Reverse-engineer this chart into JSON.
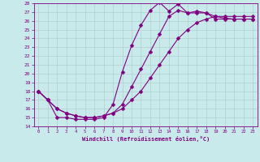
{
  "xlabel": "Windchill (Refroidissement éolien,°C)",
  "xlim": [
    -0.5,
    23.5
  ],
  "ylim": [
    14,
    28
  ],
  "xticks": [
    0,
    1,
    2,
    3,
    4,
    5,
    6,
    7,
    8,
    9,
    10,
    11,
    12,
    13,
    14,
    15,
    16,
    17,
    18,
    19,
    20,
    21,
    22,
    23
  ],
  "yticks": [
    14,
    15,
    16,
    17,
    18,
    19,
    20,
    21,
    22,
    23,
    24,
    25,
    26,
    27,
    28
  ],
  "bg_color": "#c8eaea",
  "line_color": "#800080",
  "grid_color": "#b0c8c8",
  "line1_x": [
    0,
    1,
    2,
    3,
    4,
    5,
    6,
    7,
    8,
    9,
    10,
    11,
    12,
    13,
    14,
    15,
    16,
    17,
    18,
    19,
    20,
    21,
    22,
    23
  ],
  "line1_y": [
    18,
    17,
    15,
    15,
    14.8,
    14.8,
    14.8,
    15,
    16.5,
    20.2,
    23.2,
    25.5,
    27.2,
    28.1,
    27.1,
    27.9,
    26.9,
    26.9,
    26.9,
    26.2,
    26.2,
    26.2,
    26.2,
    26.2
  ],
  "line2_x": [
    0,
    1,
    2,
    3,
    4,
    5,
    6,
    7,
    8,
    9,
    10,
    11,
    12,
    13,
    14,
    15,
    16,
    17,
    18,
    19,
    20,
    21,
    22,
    23
  ],
  "line2_y": [
    18,
    17,
    16,
    15.5,
    15.2,
    15.0,
    15.0,
    15.2,
    15.5,
    16.5,
    18.5,
    20.5,
    22.5,
    24.5,
    26.5,
    27.2,
    26.9,
    27.1,
    26.9,
    26.5,
    26.3,
    26.2,
    26.2,
    26.2
  ],
  "line3_x": [
    0,
    1,
    2,
    3,
    4,
    5,
    6,
    7,
    8,
    9,
    10,
    11,
    12,
    13,
    14,
    15,
    16,
    17,
    18,
    19,
    20,
    21,
    22,
    23
  ],
  "line3_y": [
    18,
    17,
    16,
    15.5,
    15.2,
    15.0,
    15.0,
    15.2,
    15.5,
    16.0,
    17.0,
    18.0,
    19.5,
    21.0,
    22.5,
    24.0,
    25.0,
    25.8,
    26.2,
    26.5,
    26.5,
    26.5,
    26.5,
    26.5
  ]
}
